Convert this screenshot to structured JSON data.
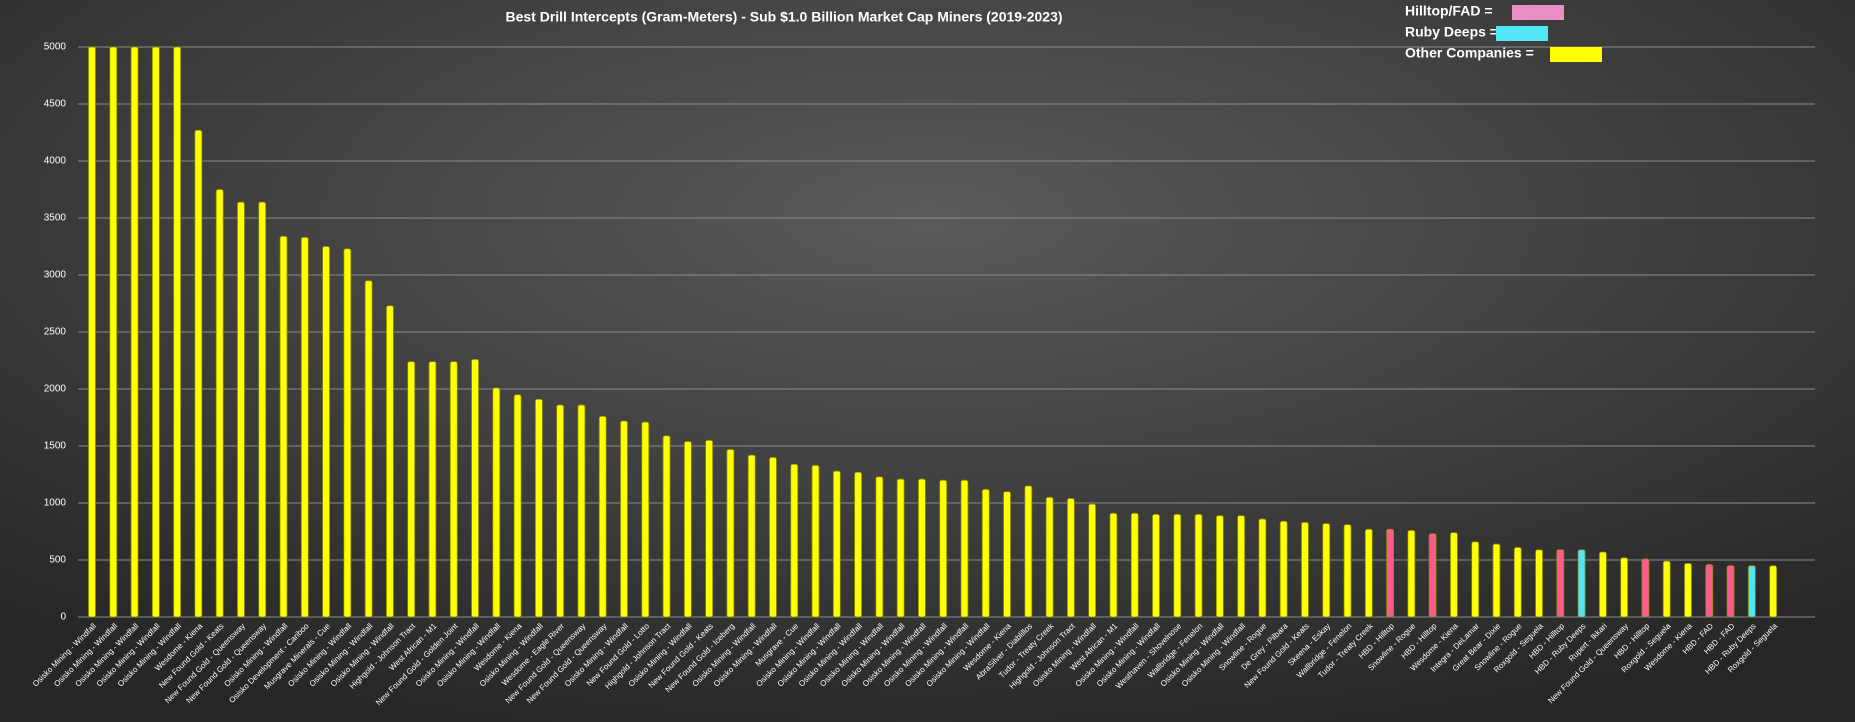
{
  "chart_data": {
    "type": "bar",
    "title": "Best Drill Intercepts (Gram-Meters) - Sub $1.0 Billion Market Cap Miners (2019-2023)",
    "legend": [
      {
        "label": "Hilltop/FAD =",
        "color": "#e98fc6"
      },
      {
        "label": "Ruby Deeps =",
        "color": "#52e5f5"
      },
      {
        "label": "Other Companies =",
        "color": "#ffff00"
      }
    ],
    "categories": [
      "Osisko Mining - Windfall",
      "Osisko Mining - Windfall",
      "Osisko Mining - Windfall",
      "Osisko Mining - Windfall",
      "Osisko Mining - Windfall",
      "Wesdome - Kiena",
      "New Found Gold - Keats",
      "New Found Gold - Queensway",
      "New Found Gold - Queensway",
      "Osisko Mining - Windfall",
      "Osisko Development - Cariboo",
      "Musgrave Minerals - Cue",
      "Osisko Mining - Windfall",
      "Osisko Mining - Windfall",
      "Osisko Mining - Windfall",
      "Highgold - Johnson Tract",
      "West African - M1",
      "New Found Gold - Golden Joint",
      "Osisko Mining - Windfall",
      "Osisko Mining - Windfall",
      "Wesdome - Kiena",
      "Osisko Mining - Windfall",
      "Wesdome - Eagle River",
      "New Found Gold - Queensway",
      "New Found Gold - Queensway",
      "Osisko Mining - Windfall",
      "New Found Gold - Lotto",
      "Highgold - Johnson Tract",
      "Osisko Mining - Windfall",
      "New Found Gold - Keats",
      "New Found Gold - Iceberg",
      "Osisko Mining - Windfall",
      "Osisko Mining - Windfall",
      "Musgrave - Cue",
      "Osisko Mining - Windfall",
      "Osisko Mining - Windfall",
      "Osisko Mining - Windfall",
      "Osisko Mining - Windfall",
      "Osisko Mining - Windfall",
      "Osisko Mining - Windfall",
      "Osisko Mining - Windfall",
      "Osisko Mining - Windfall",
      "Osisko Mining - Windfall",
      "Wesdome - Kiena",
      "AbraSilver - Diablillos",
      "Tudor - Treaty Creek",
      "Highgold - Johnson Tract",
      "Osisko Mining - Windfall",
      "West African - M1",
      "Osisko Mining - Windfall",
      "Osisko Mining - Windfall",
      "Westhaven - Shovelnose",
      "Wallbridge - Fenelon",
      "Osisko Mining - Windfall",
      "Osisko Mining - Windfall",
      "Snowline - Rogue",
      "De Grey - Pilbara",
      "New Found Gold - Keats",
      "Skeena - Eskay",
      "Wallbridge - Fenelon",
      "Tudor - Treaty Creek",
      "HBD - Hilltop",
      "Snowline - Rogue",
      "HBD - Hilltop",
      "Wesdome - Kiena",
      "Integra - DeLamar",
      "Great Bear - Dixie",
      "Snowline - Rogue",
      "Roxgold - Seguela",
      "HBD - Hilltop",
      "HBD - Ruby Deeps",
      "Rupert - Ikkari",
      "New Found Gold - Queensway",
      "HBD - Hilltop",
      "Roxgold - Seguela",
      "Wesdome - Kiena",
      "HBD - FAD",
      "HBD - FAD",
      "HBD - Ruby Deeps",
      "Roxgold - Seguela"
    ],
    "values": [
      5000,
      5000,
      5000,
      5000,
      5000,
      4270,
      3750,
      3640,
      3640,
      3340,
      3330,
      3250,
      3230,
      2950,
      2730,
      2240,
      2240,
      2240,
      2260,
      2010,
      1950,
      1910,
      1860,
      1860,
      1760,
      1720,
      1710,
      1590,
      1540,
      1550,
      1470,
      1420,
      1400,
      1340,
      1330,
      1280,
      1270,
      1230,
      1210,
      1210,
      1200,
      1200,
      1120,
      1100,
      1150,
      1050,
      1040,
      990,
      910,
      910,
      900,
      900,
      900,
      890,
      890,
      860,
      840,
      830,
      820,
      810,
      770,
      770,
      760,
      730,
      740,
      660,
      640,
      610,
      590,
      590,
      590,
      570,
      520,
      510,
      490,
      470,
      460,
      450,
      450,
      450
    ],
    "colors": [
      "#ffff00",
      "#ffff00",
      "#ffff00",
      "#ffff00",
      "#ffff00",
      "#ffff00",
      "#ffff00",
      "#ffff00",
      "#ffff00",
      "#ffff00",
      "#ffff00",
      "#ffff00",
      "#ffff00",
      "#ffff00",
      "#ffff00",
      "#ffff00",
      "#ffff00",
      "#ffff00",
      "#ffff00",
      "#ffff00",
      "#ffff00",
      "#ffff00",
      "#ffff00",
      "#ffff00",
      "#ffff00",
      "#ffff00",
      "#ffff00",
      "#ffff00",
      "#ffff00",
      "#ffff00",
      "#ffff00",
      "#ffff00",
      "#ffff00",
      "#ffff00",
      "#ffff00",
      "#ffff00",
      "#ffff00",
      "#ffff00",
      "#ffff00",
      "#ffff00",
      "#ffff00",
      "#ffff00",
      "#ffff00",
      "#ffff00",
      "#ffff00",
      "#ffff00",
      "#ffff00",
      "#ffff00",
      "#ffff00",
      "#ffff00",
      "#ffff00",
      "#ffff00",
      "#ffff00",
      "#ffff00",
      "#ffff00",
      "#ffff00",
      "#ffff00",
      "#ffff00",
      "#ffff00",
      "#ffff00",
      "#ffff00",
      "#ff5a8c",
      "#ffff00",
      "#ff5a8c",
      "#ffff00",
      "#ffff00",
      "#ffff00",
      "#ffff00",
      "#ffff00",
      "#ff5a8c",
      "#52e5f5",
      "#ffff00",
      "#ffff00",
      "#ff5a8c",
      "#ffff00",
      "#ffff00",
      "#ff5a8c",
      "#ff5a8c",
      "#52e5f5",
      "#ffff00"
    ],
    "ylim": [
      0,
      5000
    ],
    "yticks": [
      0,
      500,
      1000,
      1500,
      2000,
      2500,
      3000,
      3500,
      4000,
      4500,
      5000
    ],
    "grid": true
  }
}
